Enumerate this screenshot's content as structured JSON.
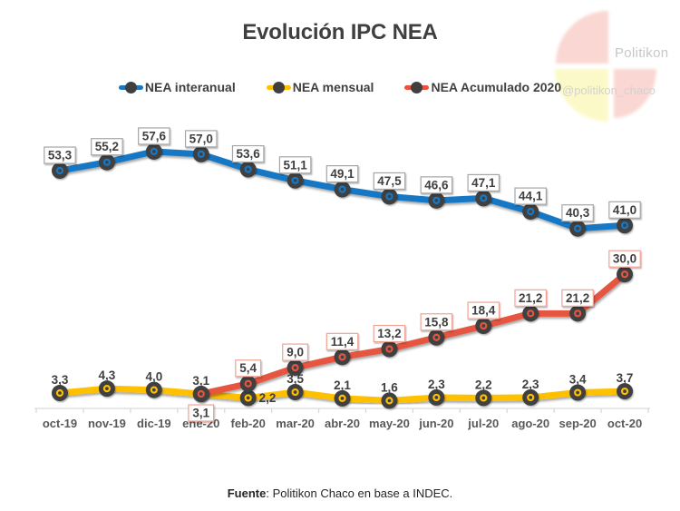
{
  "page": {
    "title": "Evolución IPC NEA",
    "watermark": "@politikon_chaco",
    "brand": "Politikon"
  },
  "legend": {
    "items": [
      {
        "label": "NEA interanual",
        "color": "#1878C4"
      },
      {
        "label": "NEA mensual",
        "color": "#FFC000"
      },
      {
        "label": "NEA Acumulado 2020",
        "color": "#E65540"
      }
    ]
  },
  "footer": {
    "source_label": "Fuente",
    "source_text": ": Politikon Chaco en base a INDEC."
  },
  "chart_data": {
    "type": "line",
    "title": "Evolución IPC NEA",
    "categories": [
      "oct-19",
      "nov-19",
      "dic-19",
      "ene-20",
      "feb-20",
      "mar-20",
      "abr-20",
      "may-20",
      "jun-20",
      "jul-20",
      "ago-20",
      "sep-20",
      "oct-20"
    ],
    "series": [
      {
        "name": "NEA interanual",
        "color": "#1878C4",
        "marker_color": "#3F3F3F",
        "label_style": "boxed",
        "box_border": "#A6A6A6",
        "values": [
          53.3,
          55.2,
          57.6,
          57.0,
          53.6,
          51.1,
          49.1,
          47.5,
          46.6,
          47.1,
          44.1,
          40.3,
          41.0
        ],
        "labels": [
          "53,3",
          "55,2",
          "57,6",
          "57,0",
          "53,6",
          "51,1",
          "49,1",
          "47,5",
          "46,6",
          "47,1",
          "44,1",
          "40,3",
          "41,0"
        ],
        "label_overrides": {}
      },
      {
        "name": "NEA mensual",
        "color": "#FFC000",
        "marker_color": "#3F3F3F",
        "label_style": "plain",
        "box_border": null,
        "values": [
          3.3,
          4.3,
          4.0,
          3.1,
          2.2,
          3.5,
          2.1,
          1.6,
          2.3,
          2.2,
          2.3,
          3.4,
          3.7
        ],
        "labels": [
          "3,3",
          "4,3",
          "4,0",
          "3,1",
          "2,2",
          "3,5",
          "2,1",
          "1,6",
          "2,3",
          "2,2",
          "2,3",
          "3,4",
          "3,7"
        ],
        "label_overrides": {
          "4": "right"
        }
      },
      {
        "name": "NEA Acumulado 2020",
        "color": "#E65540",
        "marker_color": "#3F3F3F",
        "label_style": "boxed",
        "box_border": "#F2A294",
        "values": [
          null,
          null,
          null,
          3.1,
          5.4,
          9.0,
          11.4,
          13.2,
          15.8,
          18.4,
          21.2,
          21.2,
          30.0
        ],
        "labels": [
          null,
          null,
          null,
          "3,1",
          "5,4",
          "9,0",
          "11,4",
          "13,2",
          "15,8",
          "18,4",
          "21,2",
          "21,2",
          "30,0"
        ],
        "label_overrides": {
          "3": "below"
        }
      }
    ],
    "layout": {
      "legend_position": "top",
      "grid": false,
      "y_axis_visible": false,
      "x_axis_color": "#D9D9D9",
      "axis_label_color": "#595959",
      "data_label_color": "#3F3F3F",
      "draw_order": [
        1,
        2,
        0
      ],
      "ylim": [
        0,
        62
      ]
    }
  }
}
